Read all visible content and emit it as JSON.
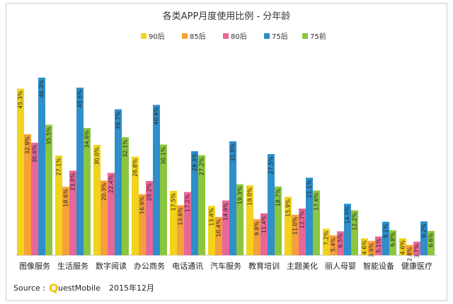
{
  "chart_data": {
    "type": "bar",
    "title": "各类APP月度使用比例 - 分年龄",
    "categories": [
      "图像服务",
      "生活服务",
      "数字阅读",
      "办公商务",
      "电话通讯",
      "汽车服务",
      "教育培训",
      "主题美化",
      "丽人母婴",
      "智能设备",
      "健康医疗"
    ],
    "series": [
      {
        "name": "90后",
        "color": "#f2d21b",
        "values": [
          45.3,
          27.1,
          30.0,
          26.8,
          17.5,
          13.4,
          19.0,
          15.9,
          7.2,
          4.6,
          4.6
        ]
      },
      {
        "name": "85后",
        "color": "#f5a03a",
        "values": [
          32.9,
          18.6,
          20.3,
          16.6,
          13.6,
          10.4,
          9.8,
          11.0,
          5.4,
          3.9,
          2.8
        ]
      },
      {
        "name": "80后",
        "color": "#e8679a",
        "values": [
          30.6,
          23.0,
          22.4,
          20.2,
          17.2,
          14.9,
          11.4,
          12.7,
          6.5,
          5.1,
          3.7
        ]
      },
      {
        "name": "75后",
        "color": "#2e8fca",
        "values": [
          48.3,
          45.6,
          39.7,
          40.9,
          28.3,
          31.0,
          27.5,
          21.1,
          14.0,
          9.1,
          9.2
        ]
      },
      {
        "name": "75前",
        "color": "#8cc63f",
        "values": [
          35.5,
          34.6,
          32.1,
          30.1,
          27.2,
          19.3,
          18.7,
          17.6,
          12.2,
          6.8,
          6.6
        ]
      }
    ],
    "ylim": [
      0,
      50
    ],
    "legend_position": "top",
    "grid": false,
    "value_labels": true,
    "value_suffix": "%"
  },
  "source": {
    "label": "Source :",
    "logo_letter": "Q",
    "logo_text": "uestMobile",
    "date": "2015年12月"
  }
}
